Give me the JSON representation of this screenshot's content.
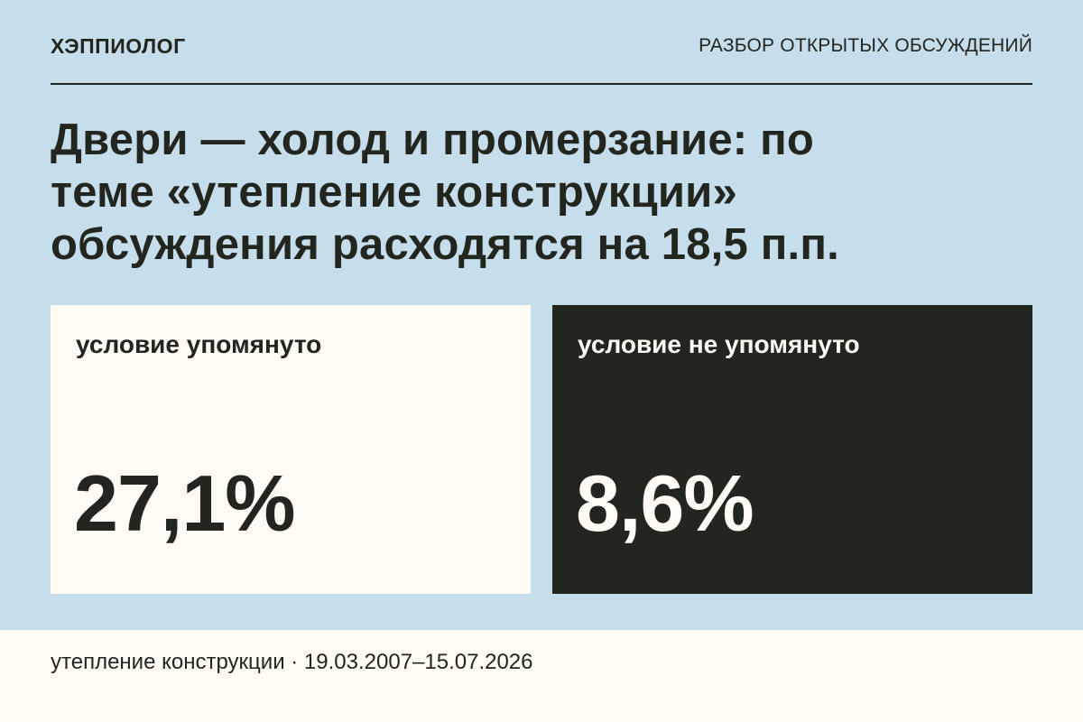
{
  "header": {
    "brand": "ХЭППИОЛОГ",
    "section_label": "РАЗБОР ОТКРЫТЫХ ОБСУЖДЕНИЙ"
  },
  "headline": {
    "line1": "Двери — холод и промерзание: по",
    "line2": "теме «утепление конструкции»",
    "line3": "обсуждения расходятся на 18,5 п.п."
  },
  "cards": [
    {
      "label": "условие упомянуто",
      "value": "27,1%"
    },
    {
      "label": "условие не упомянуто",
      "value": "8,6%"
    }
  ],
  "footer": {
    "text": "утепление конструкции · 19.03.2007–15.07.2026"
  },
  "colors": {
    "background": "#c6ddec",
    "light_card": "#fefbf3",
    "dark_card": "#23261f",
    "text_dark": "#23261f"
  }
}
